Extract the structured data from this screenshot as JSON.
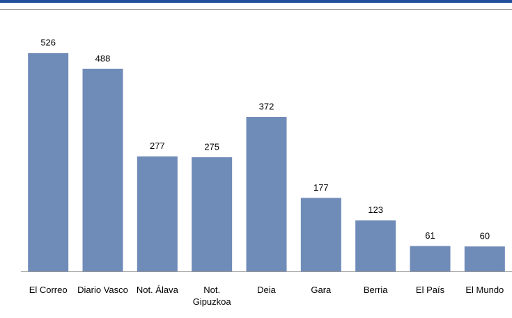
{
  "chart_data": {
    "type": "bar",
    "categories": [
      "El Correo",
      "Diario Vasco",
      "Not. Álava",
      "Not. Gipuzkoa",
      "Deia",
      "Gara",
      "Berria",
      "El País",
      "El Mundo"
    ],
    "values": [
      526,
      488,
      277,
      275,
      372,
      177,
      123,
      61,
      60
    ],
    "color": "#6f8bb8",
    "ylim": [
      0,
      600
    ]
  }
}
